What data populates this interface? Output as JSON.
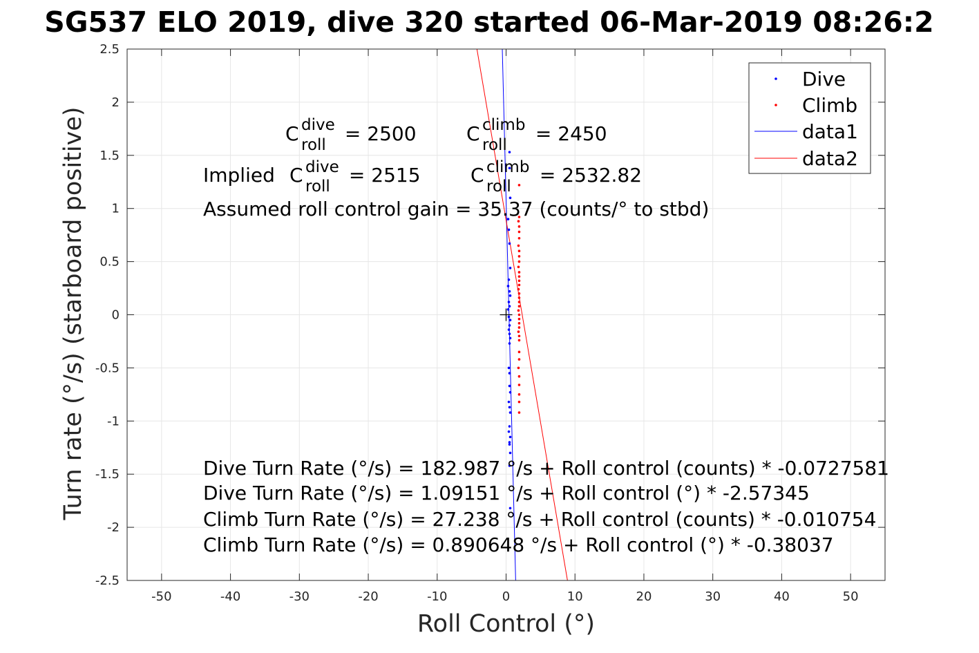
{
  "chart_data": {
    "type": "scatter",
    "title": "SG537 ELO 2019, dive 320 started 06-Mar-2019 08:26:2",
    "xlabel": "Roll Control (°)",
    "ylabel": "Turn rate (°/s) (starboard positive)",
    "xlim": [
      -55,
      55
    ],
    "ylim": [
      -2.5,
      2.5
    ],
    "xticks": [
      -50,
      -40,
      -30,
      -20,
      -10,
      0,
      10,
      20,
      30,
      40,
      50
    ],
    "yticks": [
      2.5,
      2,
      1.5,
      1,
      0.5,
      0,
      -0.5,
      -1,
      -1.5,
      -2,
      -2.5
    ],
    "xtick_labels": [
      "-50",
      "-40",
      "-30",
      "-20",
      "-10",
      "0",
      "10",
      "20",
      "30",
      "40",
      "50"
    ],
    "ytick_labels": [
      "2.5",
      "2",
      "1.5",
      "1",
      "0.5",
      "0",
      "-0.5",
      "-1",
      "-1.5",
      "-2",
      "-2.5"
    ],
    "grid": true,
    "legend_position": "top-right",
    "series": [
      {
        "name": "Dive",
        "kind": "points",
        "color": "#0000ff",
        "x": [
          0.5,
          0.5,
          0.6,
          0.3,
          0.4,
          0.5,
          0.6,
          0.4,
          0.3,
          0.5,
          0.6,
          0.4,
          0.5,
          0.3,
          0.4,
          0.6,
          0.5,
          0.4,
          0.5,
          0.6,
          0.5,
          0.4,
          0.5,
          0.5,
          0.6,
          0.4,
          0.5,
          0.6,
          0.5,
          0.4,
          0.6,
          0.5,
          0.5,
          0.6,
          0.5,
          0.6
        ],
        "y": [
          1.53,
          1.38,
          1.1,
          0.9,
          0.8,
          0.67,
          0.44,
          0.33,
          0.27,
          0.22,
          0.18,
          0.12,
          0.08,
          0.05,
          -0.02,
          -0.05,
          -0.1,
          -0.14,
          -0.18,
          -0.22,
          -0.27,
          -0.5,
          -0.55,
          -0.67,
          -0.73,
          -0.82,
          -0.87,
          -0.92,
          -1.05,
          -1.1,
          -1.15,
          -1.2,
          -1.22,
          -1.3,
          -1.42,
          -1.82
        ]
      },
      {
        "name": "Climb",
        "kind": "points",
        "color": "#ff0000",
        "x": [
          1.9,
          1.9,
          1.8,
          1.9,
          1.9,
          1.9,
          1.8,
          1.9,
          1.9,
          1.9,
          1.8,
          1.9,
          1.9,
          1.9,
          1.9,
          1.8,
          1.9,
          1.9,
          1.9,
          1.9,
          1.8,
          1.9,
          1.9,
          1.9,
          1.9,
          1.8,
          1.9,
          1.9,
          1.9,
          1.9,
          1.8,
          1.9,
          1.9,
          1.9,
          1.9,
          1.9
        ],
        "y": [
          1.22,
          0.92,
          0.88,
          0.83,
          0.78,
          0.72,
          0.65,
          0.6,
          0.55,
          0.5,
          0.45,
          0.4,
          0.36,
          0.32,
          0.28,
          0.24,
          0.2,
          0.16,
          0.12,
          0.08,
          0.04,
          0.0,
          -0.04,
          -0.08,
          -0.12,
          -0.16,
          -0.2,
          -0.24,
          -0.35,
          -0.42,
          -0.5,
          -0.58,
          -0.66,
          -0.75,
          -0.82,
          -0.92
        ]
      },
      {
        "name": "data1",
        "kind": "line",
        "color": "#0000ff",
        "x": [
          -0.55,
          1.39
        ],
        "y": [
          2.5,
          -2.5
        ]
      },
      {
        "name": "data2",
        "kind": "line",
        "color": "#ff0000",
        "x": [
          -4.23,
          8.91
        ],
        "y": [
          2.5,
          -2.5
        ]
      }
    ],
    "origin_marker": {
      "x": 0,
      "y": 0,
      "symbol": "+"
    },
    "annotations": {
      "line1_left": {
        "base": "C",
        "sup": "dive",
        "sub": "roll",
        "rest": " = 2500"
      },
      "line1_right": {
        "base": "C",
        "sup": "climb",
        "sub": "roll",
        "rest": " = 2450"
      },
      "line2_left": {
        "prefix": "Implied ",
        "base": "C",
        "sup": "dive",
        "sub": "roll",
        "rest": " = 2515"
      },
      "line2_right": {
        "base": "C",
        "sup": "climb",
        "sub": "roll",
        "rest": " = 2532.82"
      },
      "gain": "Assumed roll control gain = 35.37 (counts/° to stbd)",
      "fits": [
        "Dive Turn Rate (°/s) = 182.987 °/s + Roll control (counts) * -0.0727581",
        "Dive Turn Rate (°/s) = 1.09151 °/s + Roll control (°) * -2.57345",
        "Climb Turn Rate (°/s) = 27.238 °/s + Roll control (counts) * -0.010754",
        "Climb Turn Rate (°/s) = 0.890648 °/s + Roll control (°) * -0.38037"
      ]
    }
  }
}
